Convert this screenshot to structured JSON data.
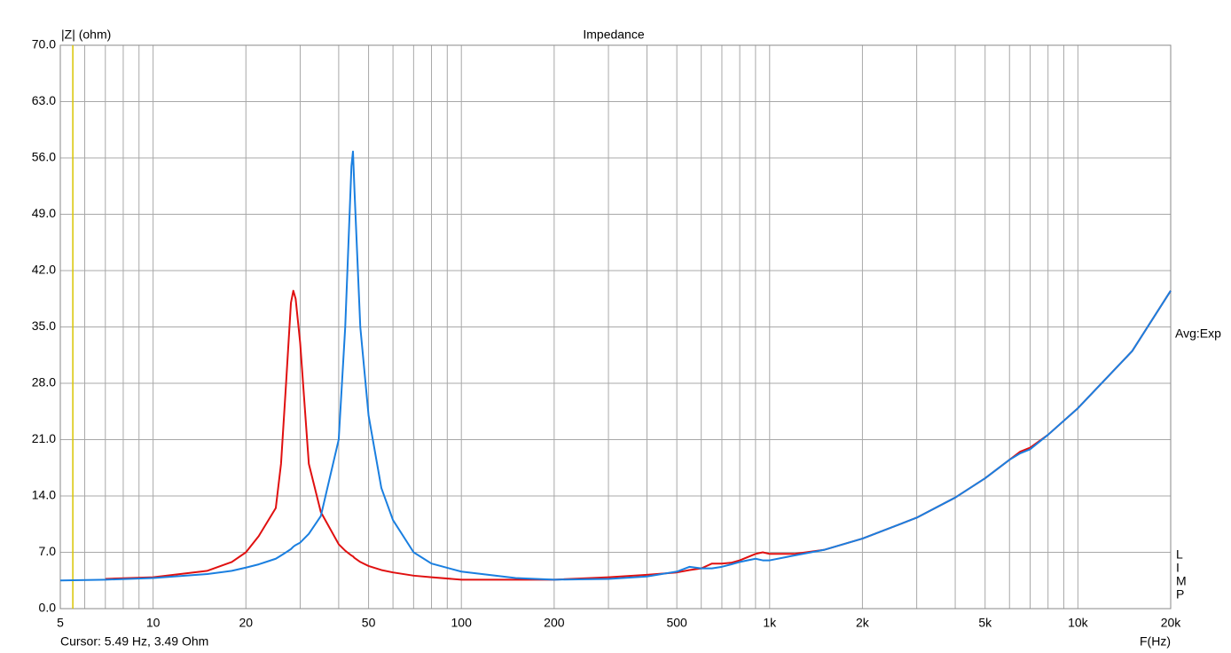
{
  "chart_data": {
    "type": "line",
    "title": "Impedance",
    "y_label": "|Z| (ohm)",
    "x_label": "F(Hz)",
    "cursor_text": "Cursor: 5.49 Hz, 3.49 Ohm",
    "cursor": {
      "x": 5.49,
      "color": "#d8c400"
    },
    "side_note": "Avg:Exp",
    "side_letters": [
      "L",
      "I",
      "M",
      "P"
    ],
    "x_scale": "log",
    "grid": true,
    "xlim": [
      5,
      20000
    ],
    "xticks": [
      5,
      10,
      20,
      50,
      100,
      200,
      500,
      {
        "value": 1000,
        "label": "1k"
      },
      {
        "value": 2000,
        "label": "2k"
      },
      {
        "value": 5000,
        "label": "5k"
      },
      {
        "value": 10000,
        "label": "10k"
      },
      {
        "value": 20000,
        "label": "20k"
      }
    ],
    "xminor": [
      6,
      7,
      8,
      9,
      30,
      40,
      60,
      70,
      80,
      90,
      300,
      400,
      600,
      700,
      800,
      900,
      3000,
      4000,
      6000,
      7000,
      8000,
      9000
    ],
    "ylim": [
      0,
      70
    ],
    "yticks": [
      {
        "value": 0,
        "label": "0.0"
      },
      {
        "value": 7,
        "label": "7.0"
      },
      {
        "value": 14,
        "label": "14.0"
      },
      {
        "value": 21,
        "label": "21.0"
      },
      {
        "value": 28,
        "label": "28.0"
      },
      {
        "value": 35,
        "label": "35.0"
      },
      {
        "value": 42,
        "label": "42.0"
      },
      {
        "value": 49,
        "label": "49.0"
      },
      {
        "value": 56,
        "label": "56.0"
      },
      {
        "value": 63,
        "label": "63.0"
      },
      {
        "value": 70,
        "label": "70.0"
      }
    ],
    "x": [
      5,
      7,
      10,
      15,
      18,
      20,
      22,
      25,
      26,
      27,
      28,
      28.5,
      29,
      30,
      32,
      35,
      40,
      42,
      44,
      44.5,
      45,
      47,
      50,
      55,
      60,
      70,
      80,
      100,
      150,
      200,
      300,
      400,
      500,
      550,
      600,
      650,
      700,
      750,
      800,
      900,
      950,
      1000,
      1200,
      1500,
      2000,
      3000,
      4000,
      5000,
      6000,
      6500,
      7000,
      8000,
      10000,
      15000,
      20000
    ],
    "series": [
      {
        "color": "#e01010",
        "values": [
          null,
          3.7,
          3.9,
          4.7,
          5.8,
          7.0,
          9.0,
          12.5,
          18,
          28,
          38,
          39.5,
          38.5,
          33,
          18,
          12,
          8.0,
          7.2,
          6.6,
          6.5,
          6.3,
          5.8,
          5.3,
          4.8,
          4.5,
          4.1,
          3.9,
          3.6,
          3.6,
          3.6,
          3.9,
          4.2,
          4.5,
          4.8,
          5.0,
          5.6,
          5.6,
          5.7,
          6.0,
          6.8,
          7.0,
          6.8,
          6.8,
          7.3,
          8.7,
          11.3,
          13.8,
          16.2,
          18.5,
          19.5,
          20.0,
          21.6,
          24.9,
          32.0,
          39.5
        ]
      },
      {
        "color": "#1a7fe0",
        "values": [
          3.5,
          3.6,
          3.8,
          4.3,
          4.7,
          5.1,
          5.5,
          6.2,
          6.6,
          7.0,
          7.4,
          7.7,
          7.9,
          8.2,
          9.3,
          11.5,
          21,
          35,
          55,
          56.8,
          52,
          35,
          24,
          15,
          11,
          7,
          5.6,
          4.6,
          3.8,
          3.6,
          3.7,
          4.0,
          4.6,
          5.2,
          5.0,
          5.0,
          5.2,
          5.5,
          5.8,
          6.2,
          6.0,
          6.0,
          6.6,
          7.3,
          8.7,
          11.3,
          13.8,
          16.2,
          18.5,
          19.3,
          19.8,
          21.6,
          24.9,
          32.0,
          39.5
        ]
      }
    ]
  }
}
